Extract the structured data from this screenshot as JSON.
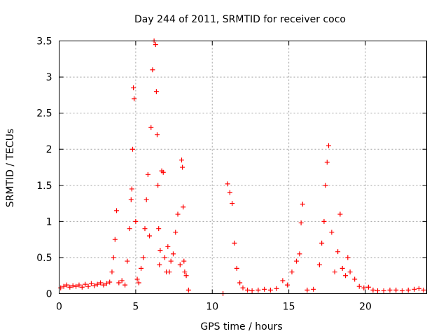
{
  "chart_data": {
    "type": "scatter",
    "title": "Day 244 of 2011, SRMTID for receiver coco",
    "xlabel": "GPS time / hours",
    "ylabel": "SRMTID / TECUs",
    "xlim": [
      0,
      24
    ],
    "ylim": [
      0,
      3.5
    ],
    "x_ticks": [
      0,
      5,
      10,
      15,
      20
    ],
    "y_ticks": [
      0,
      0.5,
      1,
      1.5,
      2,
      2.5,
      3,
      3.5
    ],
    "x_tick_labels": [
      "0",
      "5",
      "10",
      "15",
      "20"
    ],
    "y_tick_labels": [
      "0",
      "0.5",
      "1",
      "1.5",
      "2",
      "2.5",
      "3",
      "3.5"
    ],
    "grid": true,
    "marker": "plus",
    "color": "#ff0000",
    "series": [
      {
        "x": [
          0.1,
          0.3,
          0.5,
          0.7,
          0.9,
          1.1,
          1.3,
          1.5,
          1.7,
          1.9,
          2.1,
          2.3,
          2.5,
          2.7,
          2.9,
          3.1,
          3.3,
          3.45,
          3.55,
          3.65,
          3.75,
          3.9,
          4.1,
          4.3,
          4.45,
          4.6,
          4.7,
          4.75,
          4.8,
          4.85,
          4.9,
          5.0,
          5.1,
          5.2,
          5.35,
          5.5,
          5.6,
          5.7,
          5.8,
          5.9,
          6.0,
          6.1,
          6.2,
          6.3,
          6.35,
          6.4,
          6.45,
          6.5,
          6.55,
          6.6,
          6.7,
          6.8,
          6.9,
          7.0,
          7.1,
          7.2,
          7.3,
          7.45,
          7.6,
          7.75,
          7.9,
          8.0,
          8.05,
          8.1,
          8.15,
          8.2,
          8.3,
          8.45,
          10.7,
          11.0,
          11.15,
          11.3,
          11.45,
          11.6,
          11.8,
          12.0,
          12.3,
          12.6,
          13.0,
          13.4,
          13.8,
          14.2,
          14.6,
          14.9,
          15.2,
          15.5,
          15.7,
          15.8,
          15.9,
          16.2,
          16.6,
          17.0,
          17.15,
          17.3,
          17.4,
          17.5,
          17.6,
          17.8,
          18.0,
          18.2,
          18.35,
          18.5,
          18.7,
          18.85,
          19.0,
          19.3,
          19.6,
          19.9,
          20.2,
          20.5,
          20.8,
          21.2,
          21.6,
          22.0,
          22.4,
          22.8,
          23.2,
          23.5,
          23.8
        ],
        "y": [
          0.08,
          0.1,
          0.12,
          0.09,
          0.11,
          0.1,
          0.12,
          0.09,
          0.13,
          0.1,
          0.14,
          0.11,
          0.13,
          0.15,
          0.12,
          0.14,
          0.16,
          0.3,
          0.5,
          0.75,
          1.15,
          0.15,
          0.18,
          0.12,
          0.45,
          0.9,
          1.3,
          1.45,
          2.0,
          2.85,
          2.7,
          1.0,
          0.2,
          0.15,
          0.35,
          0.5,
          0.9,
          1.3,
          1.65,
          0.8,
          2.3,
          3.1,
          3.5,
          3.45,
          2.8,
          2.2,
          1.5,
          0.9,
          0.4,
          0.6,
          1.7,
          1.68,
          0.5,
          0.3,
          0.65,
          0.3,
          0.45,
          0.55,
          0.85,
          1.1,
          0.4,
          1.85,
          1.75,
          1.2,
          0.45,
          0.3,
          0.25,
          0.05,
          0.0,
          1.52,
          1.4,
          1.25,
          0.7,
          0.35,
          0.15,
          0.08,
          0.05,
          0.04,
          0.05,
          0.06,
          0.05,
          0.07,
          0.18,
          0.12,
          0.3,
          0.45,
          0.55,
          0.98,
          1.24,
          0.05,
          0.06,
          0.4,
          0.7,
          1.0,
          1.5,
          1.82,
          2.05,
          0.85,
          0.3,
          0.58,
          1.1,
          0.35,
          0.25,
          0.5,
          0.3,
          0.2,
          0.1,
          0.08,
          0.09,
          0.05,
          0.04,
          0.04,
          0.05,
          0.05,
          0.04,
          0.05,
          0.06,
          0.07,
          0.05
        ]
      }
    ]
  }
}
